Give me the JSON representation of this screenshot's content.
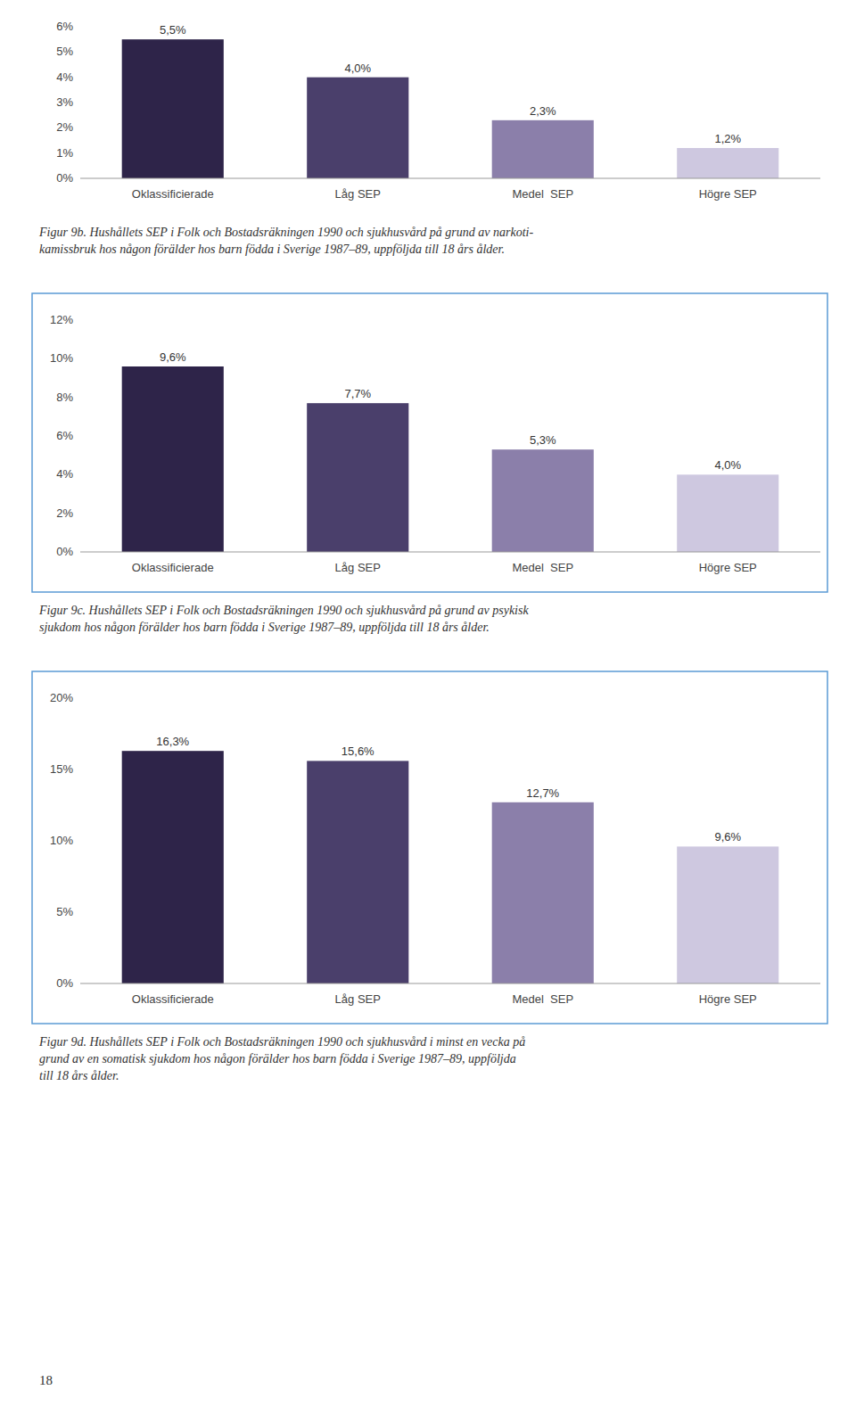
{
  "chart_data": [
    {
      "type": "bar",
      "title": "Figur 9b. Hushållets SEP i Folk och Bostadsräkningen 1990 och sjukhusvård på grund av narkoti-\nkamissbruk hos någon förälder hos barn födda i Sverige 1987–89, uppföljda till 18 års ålder.",
      "categories": [
        "Oklassificierade",
        "Låg SEP",
        "Medel  SEP",
        "Högre SEP"
      ],
      "values": [
        5.5,
        4.0,
        2.3,
        1.2
      ],
      "value_labels": [
        "5,5%",
        "4,0%",
        "2,3%",
        "1,2%"
      ],
      "data_labels": true,
      "colors": [
        "#2e2449",
        "#4a3f6b",
        "#8b7faa",
        "#cec8e0"
      ],
      "ylim": [
        0,
        6
      ],
      "yticks": [
        {
          "value": 0,
          "label": "0%"
        },
        {
          "value": 1,
          "label": "1%"
        },
        {
          "value": 2,
          "label": "2%"
        },
        {
          "value": 3,
          "label": "3%"
        },
        {
          "value": 4,
          "label": "4%"
        },
        {
          "value": 5,
          "label": "5%"
        },
        {
          "value": 6,
          "label": "6%"
        }
      ],
      "grid": false
    },
    {
      "type": "bar",
      "title": "Figur 9c. Hushållets SEP i Folk och Bostadsräkningen 1990 och sjukhusvård på grund av psykisk\nsjukdom hos någon förälder hos barn födda i Sverige 1987–89, uppföljda till 18 års ålder.",
      "categories": [
        "Oklassificierade",
        "Låg SEP",
        "Medel  SEP",
        "Högre SEP"
      ],
      "values": [
        9.6,
        7.7,
        5.3,
        4.0
      ],
      "value_labels": [
        "9,6%",
        "7,7%",
        "5,3%",
        "4,0%"
      ],
      "data_labels": true,
      "colors": [
        "#2e2449",
        "#4a3f6b",
        "#8b7faa",
        "#cec8e0"
      ],
      "ylim": [
        0,
        12
      ],
      "yticks": [
        {
          "value": 0,
          "label": "0%"
        },
        {
          "value": 2,
          "label": "2%"
        },
        {
          "value": 4,
          "label": "4%"
        },
        {
          "value": 6,
          "label": "6%"
        },
        {
          "value": 8,
          "label": "8%"
        },
        {
          "value": 10,
          "label": "10%"
        },
        {
          "value": 12,
          "label": "12%"
        }
      ],
      "grid": false
    },
    {
      "type": "bar",
      "title": "Figur 9d. Hushållets SEP i Folk och Bostadsräkningen 1990 och sjukhusvård i minst en vecka på\ngrund av en somatisk sjukdom hos någon förälder hos barn födda i Sverige 1987–89, uppföljda\ntill 18 års ålder.",
      "categories": [
        "Oklassificierade",
        "Låg SEP",
        "Medel  SEP",
        "Högre SEP"
      ],
      "values": [
        16.3,
        15.6,
        12.7,
        9.6
      ],
      "value_labels": [
        "16,3%",
        "15,6%",
        "12,7%",
        "9,6%"
      ],
      "data_labels": true,
      "colors": [
        "#2e2449",
        "#4a3f6b",
        "#8b7faa",
        "#cec8e0"
      ],
      "ylim": [
        0,
        20
      ],
      "yticks": [
        {
          "value": 0,
          "label": "0%"
        },
        {
          "value": 5,
          "label": "5%"
        },
        {
          "value": 10,
          "label": "10%"
        },
        {
          "value": 15,
          "label": "15%"
        },
        {
          "value": 20,
          "label": "20%"
        }
      ],
      "grid": false
    }
  ],
  "page_number": "18"
}
